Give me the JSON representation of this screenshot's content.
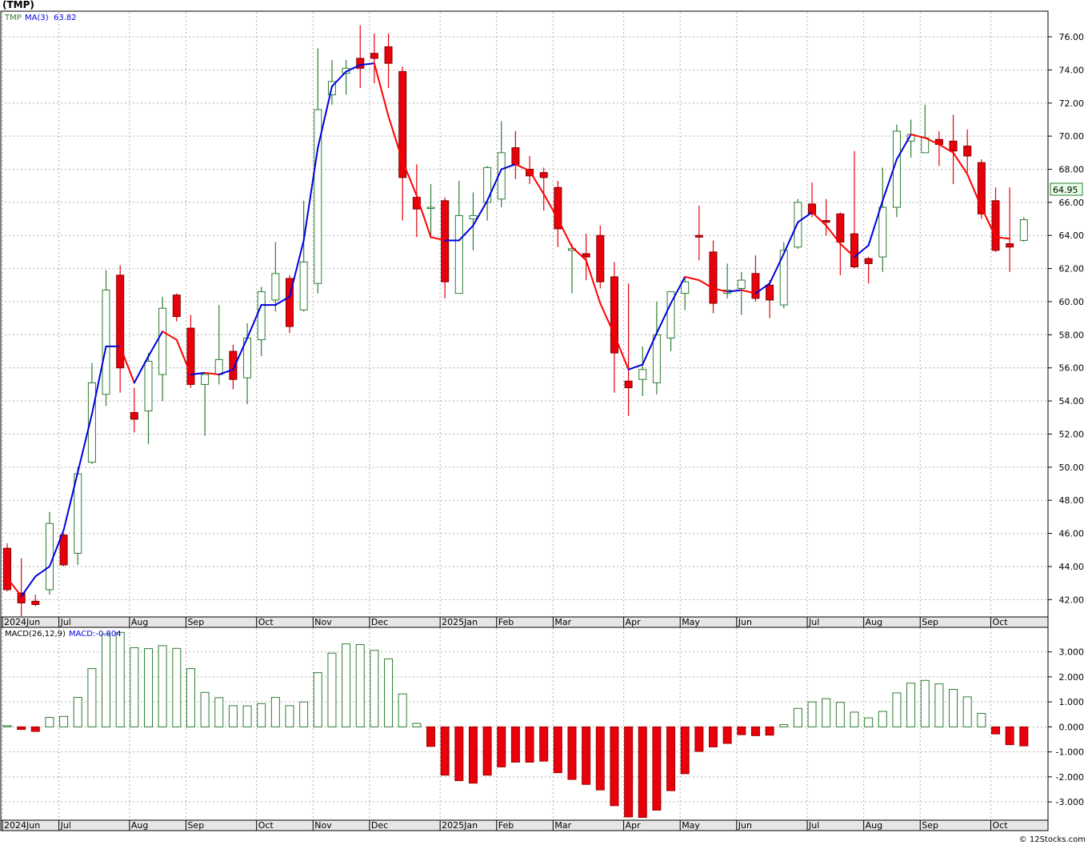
{
  "title": "(TMP)",
  "legend": {
    "symbol": "TMP",
    "ma_label": "MA(3)",
    "ma_value": "63.82"
  },
  "macd_legend": {
    "label": "MACD(26,12,9)",
    "value_label": "MACD:-0.804"
  },
  "last_price": "64.95",
  "footer": "© 12Stocks.com",
  "colors": {
    "up": "#2e7d32",
    "down": "#e8000b",
    "ma_up": "#0000dd",
    "ma_down": "#ff0000",
    "grid": "#b0b0b0",
    "axis_band": "#e6e6e6"
  },
  "chart_data": [
    {
      "type": "candlestick",
      "name": "price",
      "ylim": [
        41,
        77.5
      ],
      "yticks": [
        42,
        44,
        46,
        48,
        50,
        52,
        54,
        56,
        58,
        60,
        62,
        64,
        66,
        68,
        70,
        72,
        74,
        76
      ],
      "ytick_labels": [
        "42.00",
        "44.00",
        "46.00",
        "48.00",
        "50.00",
        "52.00",
        "54.00",
        "56.00",
        "58.00",
        "60.00",
        "62.00",
        "64.00",
        "66.00",
        "68.00",
        "70.00",
        "72.00",
        "74.00",
        "76.00"
      ],
      "xtick_labels": [
        {
          "label": "2024Jun",
          "week": 0
        },
        {
          "label": "Jul",
          "week": 4
        },
        {
          "label": "Aug",
          "week": 9
        },
        {
          "label": "Sep",
          "week": 13
        },
        {
          "label": "Oct",
          "week": 18
        },
        {
          "label": "Nov",
          "week": 22
        },
        {
          "label": "Dec",
          "week": 26
        },
        {
          "label": "2025Jan",
          "week": 31
        },
        {
          "label": "Feb",
          "week": 35
        },
        {
          "label": "Mar",
          "week": 39
        },
        {
          "label": "Apr",
          "week": 44
        },
        {
          "label": "May",
          "week": 48
        },
        {
          "label": "Jun",
          "week": 52
        },
        {
          "label": "Jul",
          "week": 57
        },
        {
          "label": "Aug",
          "week": 61
        },
        {
          "label": "Sep",
          "week": 65
        },
        {
          "label": "Oct",
          "week": 70
        }
      ],
      "candles": [
        {
          "o": 45.1,
          "h": 45.4,
          "l": 42.5,
          "c": 42.6
        },
        {
          "o": 42.4,
          "h": 44.5,
          "l": 41.0,
          "c": 41.8
        },
        {
          "o": 41.9,
          "h": 42.3,
          "l": 41.6,
          "c": 41.7
        },
        {
          "o": 42.6,
          "h": 47.3,
          "l": 42.3,
          "c": 46.6
        },
        {
          "o": 45.9,
          "h": 46.0,
          "l": 44.0,
          "c": 44.1
        },
        {
          "o": 44.8,
          "h": 50.0,
          "l": 44.1,
          "c": 49.6
        },
        {
          "o": 50.3,
          "h": 56.3,
          "l": 50.2,
          "c": 55.1
        },
        {
          "o": 54.4,
          "h": 61.9,
          "l": 53.7,
          "c": 60.7
        },
        {
          "o": 61.6,
          "h": 62.2,
          "l": 54.5,
          "c": 56.0
        },
        {
          "o": 53.3,
          "h": 54.8,
          "l": 52.1,
          "c": 52.9
        },
        {
          "o": 53.4,
          "h": 56.9,
          "l": 51.4,
          "c": 56.4
        },
        {
          "o": 55.6,
          "h": 60.3,
          "l": 54.0,
          "c": 59.6
        },
        {
          "o": 60.4,
          "h": 60.5,
          "l": 58.8,
          "c": 59.1
        },
        {
          "o": 58.4,
          "h": 59.2,
          "l": 54.8,
          "c": 55.0
        },
        {
          "o": 55.0,
          "h": 55.6,
          "l": 51.9,
          "c": 55.6
        },
        {
          "o": 55.6,
          "h": 59.8,
          "l": 55.0,
          "c": 56.5
        },
        {
          "o": 57.0,
          "h": 57.4,
          "l": 54.7,
          "c": 55.3
        },
        {
          "o": 55.4,
          "h": 58.7,
          "l": 53.8,
          "c": 57.8
        },
        {
          "o": 57.7,
          "h": 60.9,
          "l": 56.7,
          "c": 60.6
        },
        {
          "o": 60.1,
          "h": 63.6,
          "l": 59.4,
          "c": 61.7
        },
        {
          "o": 61.4,
          "h": 61.6,
          "l": 58.1,
          "c": 58.5
        },
        {
          "o": 59.5,
          "h": 66.1,
          "l": 59.4,
          "c": 62.4
        },
        {
          "o": 61.1,
          "h": 75.3,
          "l": 60.5,
          "c": 71.6
        },
        {
          "o": 72.5,
          "h": 74.6,
          "l": 71.9,
          "c": 73.3
        },
        {
          "o": 73.8,
          "h": 74.6,
          "l": 72.5,
          "c": 74.1
        },
        {
          "o": 74.7,
          "h": 76.7,
          "l": 72.9,
          "c": 74.1
        },
        {
          "o": 75.0,
          "h": 76.2,
          "l": 73.2,
          "c": 74.7
        },
        {
          "o": 75.4,
          "h": 76.2,
          "l": 72.9,
          "c": 74.4
        },
        {
          "o": 73.9,
          "h": 74.2,
          "l": 64.9,
          "c": 67.5
        },
        {
          "o": 66.3,
          "h": 68.3,
          "l": 63.9,
          "c": 65.6
        },
        {
          "o": 65.7,
          "h": 67.1,
          "l": 63.8,
          "c": 65.7
        },
        {
          "o": 66.1,
          "h": 66.3,
          "l": 60.2,
          "c": 61.2
        },
        {
          "o": 60.5,
          "h": 67.3,
          "l": 60.5,
          "c": 65.2
        },
        {
          "o": 65.0,
          "h": 66.6,
          "l": 63.1,
          "c": 65.2
        },
        {
          "o": 66.0,
          "h": 68.2,
          "l": 64.9,
          "c": 68.1
        },
        {
          "o": 66.2,
          "h": 70.9,
          "l": 65.7,
          "c": 69.0
        },
        {
          "o": 69.3,
          "h": 70.3,
          "l": 67.4,
          "c": 68.3
        },
        {
          "o": 68.0,
          "h": 68.8,
          "l": 67.1,
          "c": 67.6
        },
        {
          "o": 67.8,
          "h": 68.1,
          "l": 65.5,
          "c": 67.5
        },
        {
          "o": 66.9,
          "h": 67.3,
          "l": 63.3,
          "c": 64.4
        },
        {
          "o": 63.1,
          "h": 63.5,
          "l": 60.5,
          "c": 63.2
        },
        {
          "o": 62.9,
          "h": 64.1,
          "l": 61.3,
          "c": 62.7
        },
        {
          "o": 64.0,
          "h": 64.6,
          "l": 60.8,
          "c": 61.2
        },
        {
          "o": 61.5,
          "h": 62.4,
          "l": 54.5,
          "c": 56.9
        },
        {
          "o": 55.2,
          "h": 61.1,
          "l": 53.1,
          "c": 54.8
        },
        {
          "o": 55.3,
          "h": 57.3,
          "l": 54.3,
          "c": 55.9
        },
        {
          "o": 55.1,
          "h": 60.0,
          "l": 54.4,
          "c": 58.0
        },
        {
          "o": 57.8,
          "h": 60.5,
          "l": 57.0,
          "c": 60.6
        },
        {
          "o": 60.5,
          "h": 61.5,
          "l": 59.5,
          "c": 61.2
        },
        {
          "o": 64.0,
          "h": 65.8,
          "l": 62.5,
          "c": 63.9
        },
        {
          "o": 63.0,
          "h": 63.7,
          "l": 59.3,
          "c": 59.9
        },
        {
          "o": 60.5,
          "h": 62.3,
          "l": 60.2,
          "c": 60.7
        },
        {
          "o": 60.8,
          "h": 61.8,
          "l": 59.2,
          "c": 61.3
        },
        {
          "o": 61.7,
          "h": 62.8,
          "l": 60.0,
          "c": 60.2
        },
        {
          "o": 61.0,
          "h": 61.3,
          "l": 59.0,
          "c": 60.1
        },
        {
          "o": 59.8,
          "h": 63.6,
          "l": 59.6,
          "c": 63.1
        },
        {
          "o": 63.3,
          "h": 66.2,
          "l": 63.2,
          "c": 66.0
        },
        {
          "o": 65.9,
          "h": 67.2,
          "l": 65.1,
          "c": 65.3
        },
        {
          "o": 64.9,
          "h": 66.2,
          "l": 64.0,
          "c": 64.8
        },
        {
          "o": 65.3,
          "h": 65.4,
          "l": 61.6,
          "c": 63.6
        },
        {
          "o": 64.1,
          "h": 69.1,
          "l": 62.0,
          "c": 62.1
        },
        {
          "o": 62.6,
          "h": 62.7,
          "l": 61.1,
          "c": 62.3
        },
        {
          "o": 62.7,
          "h": 68.1,
          "l": 61.8,
          "c": 65.7
        },
        {
          "o": 65.7,
          "h": 70.7,
          "l": 65.1,
          "c": 70.3
        },
        {
          "o": 69.7,
          "h": 71.0,
          "l": 68.7,
          "c": 70.1
        },
        {
          "o": 69.0,
          "h": 71.9,
          "l": 69.0,
          "c": 69.9
        },
        {
          "o": 69.8,
          "h": 70.3,
          "l": 68.2,
          "c": 69.5
        },
        {
          "o": 69.7,
          "h": 71.3,
          "l": 67.1,
          "c": 69.1
        },
        {
          "o": 69.4,
          "h": 70.4,
          "l": 67.8,
          "c": 68.8
        },
        {
          "o": 68.4,
          "h": 68.6,
          "l": 65.0,
          "c": 65.3
        },
        {
          "o": 66.1,
          "h": 66.9,
          "l": 63.0,
          "c": 63.1
        },
        {
          "o": 63.5,
          "h": 66.9,
          "l": 61.8,
          "c": 63.3
        },
        {
          "o": 63.7,
          "h": 65.1,
          "l": 63.6,
          "c": 64.95
        }
      ],
      "ma3": [
        43.3,
        42.2,
        43.4,
        44.0,
        46.2,
        49.7,
        53.2,
        57.3,
        57.3,
        55.1,
        56.7,
        58.2,
        57.7,
        55.6,
        55.7,
        55.6,
        55.9,
        57.8,
        59.8,
        59.8,
        60.3,
        63.7,
        69.3,
        73.0,
        73.9,
        74.3,
        74.4,
        71.2,
        68.5,
        66.4,
        63.9,
        63.7,
        63.7,
        64.6,
        66.1,
        68.0,
        68.3,
        67.9,
        66.5,
        65.0,
        63.3,
        62.5,
        59.9,
        58.0,
        55.9,
        56.2,
        58.1,
        59.9,
        61.5,
        61.3,
        60.8,
        60.6,
        60.7,
        60.5,
        61.1,
        62.9,
        64.8,
        65.4,
        64.6,
        63.5,
        62.7,
        63.4,
        66.1,
        68.6,
        70.1,
        69.9,
        69.5,
        69.0,
        67.7,
        65.7,
        63.9,
        63.8
      ]
    },
    {
      "type": "bar",
      "name": "macd_histogram",
      "ylim": [
        -3.7,
        3.95
      ],
      "yticks": [
        -3,
        -2,
        -1,
        0,
        1,
        2,
        3
      ],
      "ytick_labels": [
        "-3.000",
        "-2.000",
        "-1.000",
        "0.000",
        "1.000",
        "2.000",
        "3.000"
      ],
      "values": [
        0.05,
        -0.1,
        -0.18,
        0.38,
        0.42,
        1.18,
        2.33,
        3.72,
        3.78,
        3.17,
        3.13,
        3.25,
        3.14,
        2.33,
        1.38,
        1.17,
        0.85,
        0.84,
        0.93,
        1.18,
        0.85,
        1.0,
        2.17,
        2.95,
        3.32,
        3.29,
        3.06,
        2.72,
        1.32,
        0.14,
        -0.78,
        -1.93,
        -2.15,
        -2.25,
        -1.93,
        -1.6,
        -1.41,
        -1.41,
        -1.37,
        -1.83,
        -2.1,
        -2.3,
        -2.52,
        -3.15,
        -3.6,
        -3.62,
        -3.33,
        -2.55,
        -1.87,
        -0.98,
        -0.8,
        -0.66,
        -0.31,
        -0.35,
        -0.33,
        0.09,
        0.74,
        1.0,
        1.13,
        0.98,
        0.59,
        0.36,
        0.62,
        1.36,
        1.75,
        1.86,
        1.72,
        1.5,
        1.2,
        0.54,
        -0.28,
        -0.71,
        -0.76
      ]
    }
  ]
}
